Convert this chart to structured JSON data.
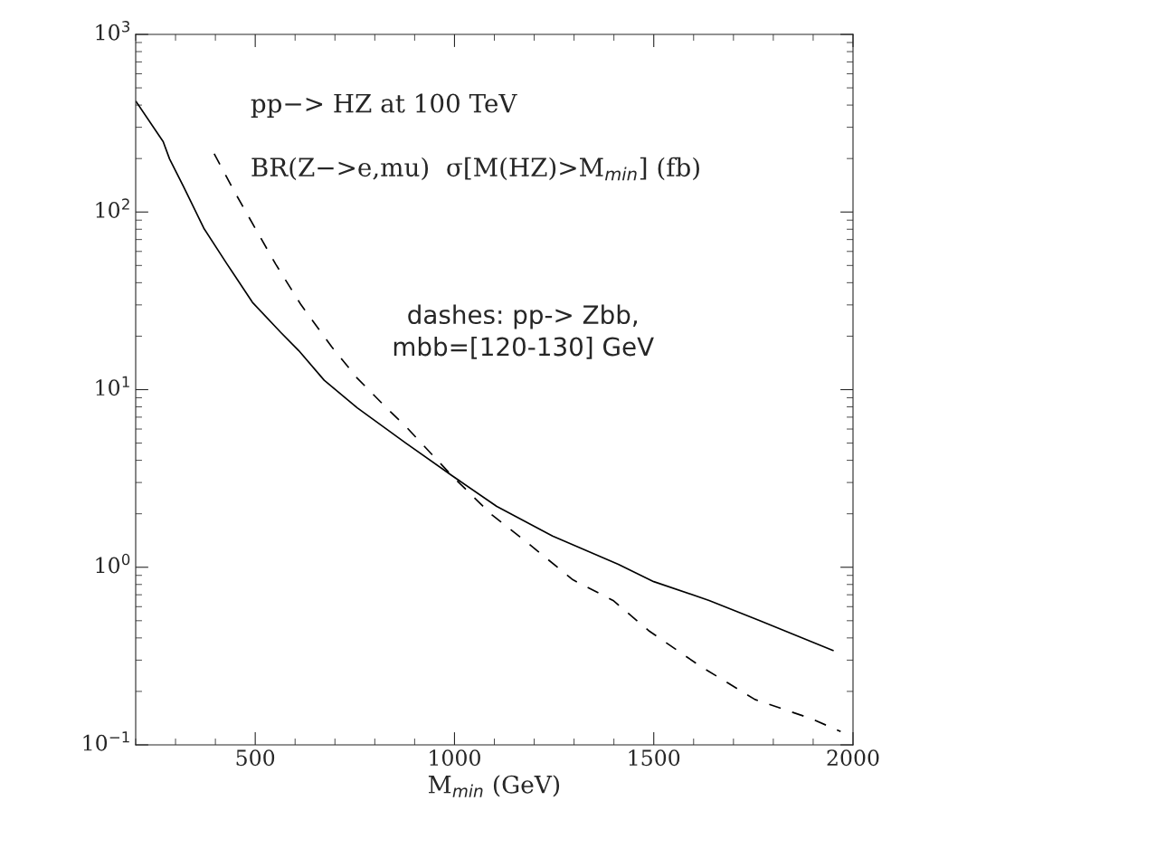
{
  "chart_data": {
    "type": "line",
    "xlabel": "M$_{min}$ (GeV)",
    "annotations": [
      "pp−> HZ at 100 TeV",
      "BR(Z−>e,mu)  σ[M(HZ)>M$_{min}$] (fb)",
      "dashes: pp-> Zbb,\nmbb=[120-130] GeV"
    ],
    "log": "y",
    "xlim": [
      200,
      2000
    ],
    "xticks": [
      500,
      1000,
      1500,
      2000
    ],
    "ylim": [
      0.1,
      1000
    ],
    "yticks": [
      {
        "value": 0.1,
        "label": "10$^{−1}$"
      },
      {
        "value": 1,
        "label": "10$^{0}$"
      },
      {
        "value": 10,
        "label": "10$^{1}$"
      },
      {
        "value": 100,
        "label": "10$^{2}$"
      },
      {
        "value": 1000,
        "label": "10$^{3}$"
      }
    ],
    "grid": false,
    "legend": false,
    "series": [
      {
        "color": "#000000",
        "line_style": "solid",
        "x": [
          201,
          269,
          285,
          320,
          371,
          429,
          493,
          564,
          609,
          673,
          756,
          878,
          992,
          1106,
          1246,
          1411,
          1500,
          1639,
          1766,
          1950
        ],
        "values": [
          419,
          249,
          199,
          139,
          81,
          51,
          31,
          21,
          16.6,
          11.3,
          7.9,
          5.0,
          3.3,
          2.2,
          1.5,
          1.04,
          0.83,
          0.65,
          0.5,
          0.34
        ]
      },
      {
        "color": "#000000",
        "line_style": "dashed",
        "x": [
          397,
          448,
          500,
          551,
          615,
          692,
          756,
          834,
          878,
          992,
          1094,
          1182,
          1297,
          1398,
          1487,
          1614,
          1754,
          1893,
          1969
        ],
        "values": [
          213,
          130,
          81,
          51,
          30,
          17.4,
          11.6,
          7.7,
          6.2,
          3.3,
          1.97,
          1.38,
          0.85,
          0.65,
          0.44,
          0.28,
          0.18,
          0.141,
          0.119
        ]
      }
    ]
  }
}
